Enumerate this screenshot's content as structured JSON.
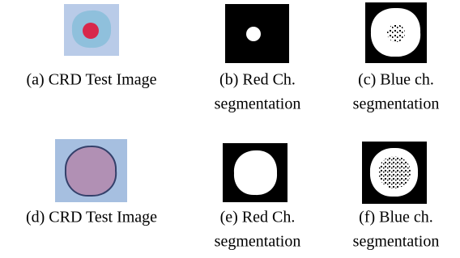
{
  "figure": {
    "subfigures": [
      {
        "lines": [
          "(a) CRD Test Image"
        ]
      },
      {
        "lines": [
          "(b) Red Ch.",
          "segmentation"
        ]
      },
      {
        "lines": [
          "(c) Blue ch.",
          "segmentation"
        ]
      },
      {
        "lines": [
          "(d) CRD Test Image"
        ]
      },
      {
        "lines": [
          "(e) Red Ch.",
          "segmentation"
        ]
      },
      {
        "lines": [
          "(f) Blue ch.",
          "segmentation"
        ]
      }
    ]
  }
}
